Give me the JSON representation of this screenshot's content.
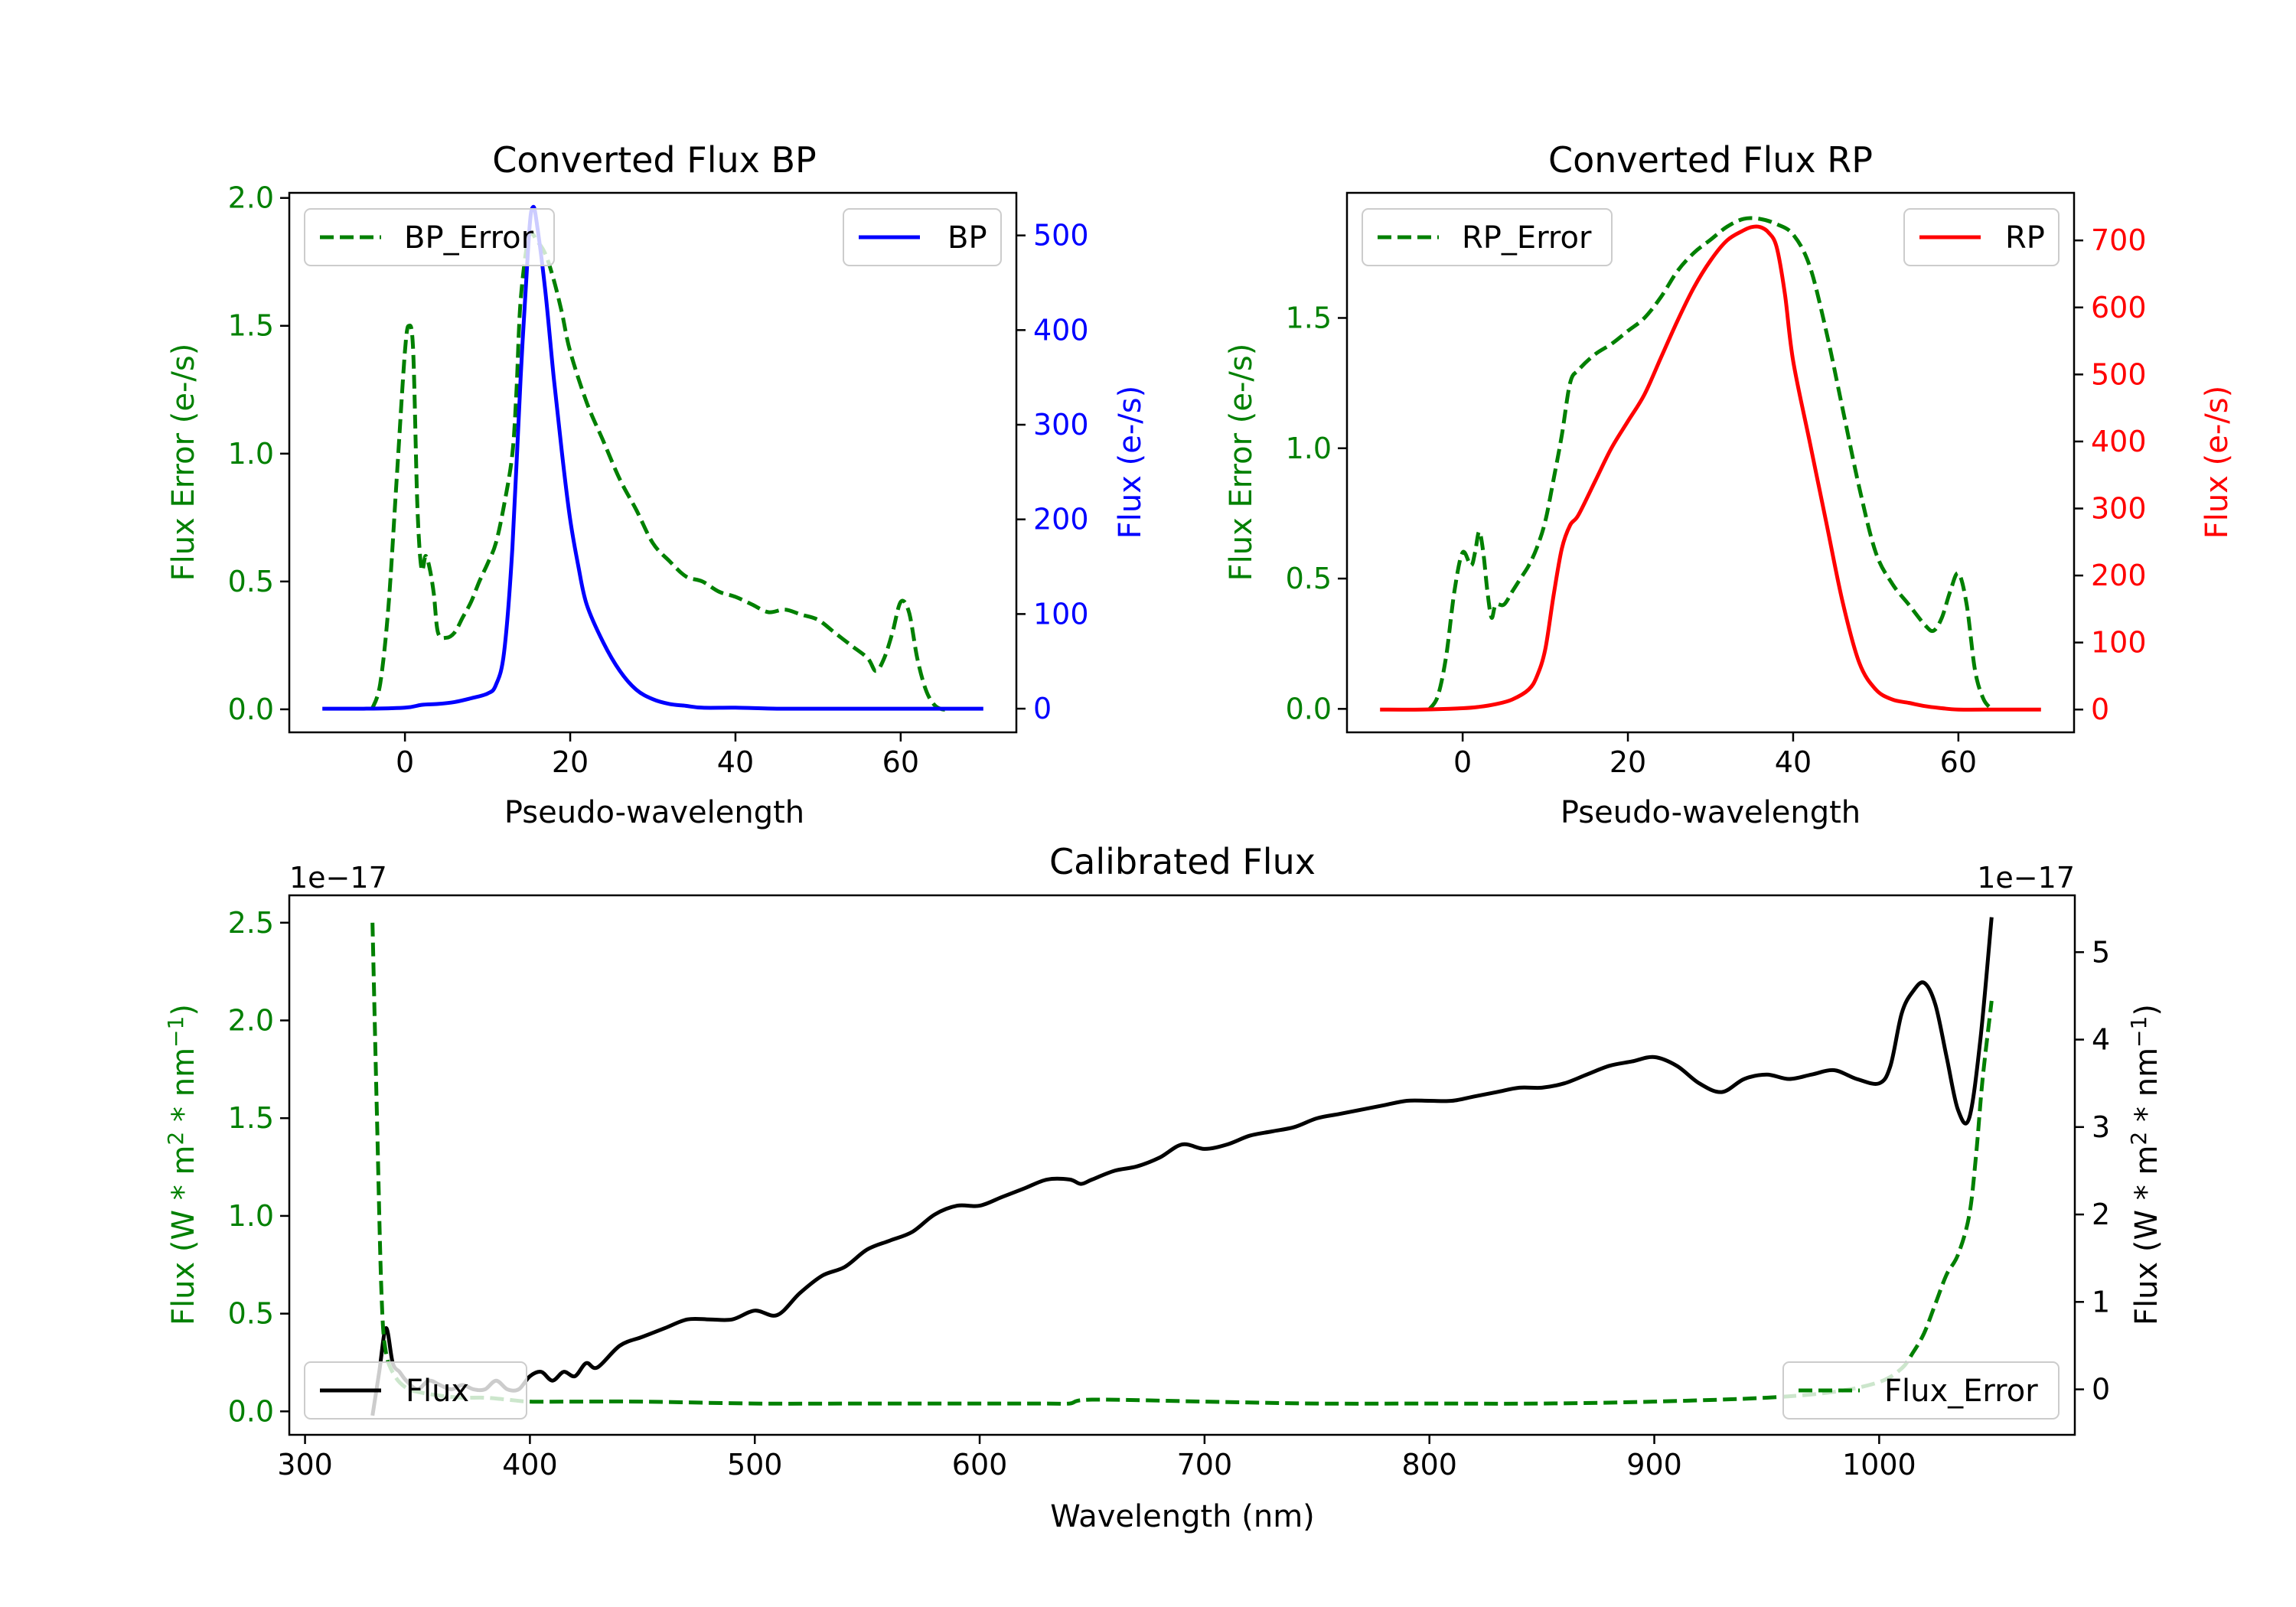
{
  "colors": {
    "green": "#008000",
    "blue": "#0000ff",
    "red": "#ff0000",
    "black": "#000000"
  },
  "chart_data": [
    {
      "type": "line",
      "title": "Converted Flux BP",
      "xlabel": "Pseudo-wavelength",
      "ylabel_left": "Flux Error (e-/s)",
      "ylabel_right": "Flux (e-/s)",
      "xlim": [
        -14,
        74
      ],
      "ylim_left": [
        -0.09,
        2.02
      ],
      "ylim_right": [
        -25,
        545
      ],
      "xticks": [
        "0",
        "20",
        "40",
        "60"
      ],
      "yticks_left": [
        "0.0",
        "0.5",
        "1.0",
        "1.5",
        "2.0"
      ],
      "yticks_right": [
        "0",
        "100",
        "200",
        "300",
        "400",
        "500"
      ],
      "legend_left": "BP_Error",
      "legend_right": "BP",
      "series": [
        {
          "name": "BP_Error",
          "axis": "left",
          "style": "dashed",
          "color": "#008000",
          "x": [
            -4,
            -3,
            -2,
            -1,
            0,
            0.5,
            1,
            1.5,
            2,
            2.5,
            3,
            3.5,
            4,
            5,
            6,
            7,
            8,
            9,
            10,
            11,
            12,
            13,
            13.5,
            14,
            15,
            16,
            17,
            18,
            19,
            20,
            22,
            24,
            26,
            28,
            30,
            32,
            34,
            36,
            38,
            40,
            42,
            44,
            46,
            48,
            50,
            52,
            54,
            56,
            57,
            58,
            59,
            60,
            61,
            62,
            63,
            64,
            65,
            66
          ],
          "values": [
            0.0,
            0.1,
            0.4,
            0.9,
            1.4,
            1.5,
            1.4,
            0.8,
            0.55,
            0.6,
            0.55,
            0.45,
            0.3,
            0.28,
            0.3,
            0.36,
            0.42,
            0.5,
            0.57,
            0.65,
            0.8,
            1.0,
            1.25,
            1.6,
            1.85,
            1.83,
            1.78,
            1.68,
            1.55,
            1.4,
            1.2,
            1.05,
            0.9,
            0.78,
            0.65,
            0.58,
            0.52,
            0.5,
            0.46,
            0.44,
            0.41,
            0.38,
            0.39,
            0.37,
            0.35,
            0.3,
            0.25,
            0.2,
            0.15,
            0.2,
            0.3,
            0.42,
            0.38,
            0.2,
            0.08,
            0.02,
            0.0,
            0.0
          ]
        },
        {
          "name": "BP",
          "axis": "right",
          "style": "solid",
          "color": "#0000ff",
          "x": [
            -10,
            -5,
            0,
            2,
            4,
            6,
            8,
            10,
            11,
            12,
            13,
            14,
            15,
            15.5,
            16,
            17,
            18,
            19,
            20,
            21,
            22,
            24,
            26,
            28,
            30,
            32,
            34,
            36,
            40,
            45,
            50,
            55,
            60,
            65,
            70
          ],
          "values": [
            0,
            0,
            1,
            4,
            5,
            7,
            11,
            16,
            25,
            60,
            170,
            350,
            500,
            530,
            510,
            440,
            350,
            270,
            200,
            150,
            110,
            70,
            40,
            20,
            10,
            5,
            3,
            1,
            1,
            0,
            0,
            0,
            0,
            0,
            0
          ]
        }
      ]
    },
    {
      "type": "line",
      "title": "Converted Flux RP",
      "xlabel": "Pseudo-wavelength",
      "ylabel_left": "Flux Error (e-/s)",
      "ylabel_right": "Flux (e-/s)",
      "xlim": [
        -14,
        74
      ],
      "ylim_left": [
        -0.09,
        1.98
      ],
      "ylim_right": [
        -34,
        771
      ],
      "xticks": [
        "0",
        "20",
        "40",
        "60"
      ],
      "yticks_left": [
        "0.0",
        "0.5",
        "1.0",
        "1.5"
      ],
      "yticks_right": [
        "0",
        "100",
        "200",
        "300",
        "400",
        "500",
        "600",
        "700"
      ],
      "legend_left": "RP_Error",
      "legend_right": "RP",
      "series": [
        {
          "name": "RP_Error",
          "axis": "left",
          "style": "dashed",
          "color": "#008000",
          "x": [
            -4,
            -3,
            -2,
            -1,
            0,
            1,
            1.5,
            2,
            2.5,
            3,
            3.5,
            4,
            5,
            6,
            7,
            8,
            9,
            10,
            11,
            12,
            13,
            14,
            16,
            18,
            20,
            22,
            24,
            26,
            28,
            30,
            32,
            34,
            36,
            38,
            40,
            42,
            44,
            46,
            48,
            50,
            52,
            54,
            56,
            57,
            58,
            59,
            60,
            61,
            62,
            63,
            64
          ],
          "values": [
            0.0,
            0.05,
            0.2,
            0.45,
            0.6,
            0.55,
            0.6,
            0.68,
            0.6,
            0.45,
            0.35,
            0.4,
            0.4,
            0.45,
            0.5,
            0.55,
            0.62,
            0.72,
            0.88,
            1.05,
            1.25,
            1.3,
            1.36,
            1.4,
            1.45,
            1.5,
            1.58,
            1.68,
            1.75,
            1.8,
            1.85,
            1.88,
            1.88,
            1.86,
            1.82,
            1.7,
            1.45,
            1.15,
            0.85,
            0.6,
            0.48,
            0.4,
            0.32,
            0.3,
            0.35,
            0.45,
            0.52,
            0.4,
            0.15,
            0.04,
            0.0
          ]
        },
        {
          "name": "RP",
          "axis": "right",
          "style": "solid",
          "color": "#ff0000",
          "x": [
            -10,
            -5,
            0,
            2,
            4,
            6,
            8,
            9,
            10,
            11,
            12,
            13,
            14,
            16,
            18,
            20,
            22,
            24,
            26,
            28,
            30,
            32,
            34,
            35,
            36,
            37,
            38,
            39,
            40,
            42,
            44,
            46,
            48,
            50,
            52,
            54,
            56,
            58,
            60,
            65,
            70
          ],
          "values": [
            0,
            0,
            2,
            4,
            8,
            15,
            30,
            50,
            90,
            170,
            240,
            275,
            290,
            340,
            390,
            430,
            470,
            525,
            580,
            630,
            670,
            700,
            715,
            720,
            720,
            712,
            690,
            620,
            520,
            400,
            280,
            160,
            70,
            30,
            15,
            10,
            5,
            2,
            0,
            0,
            0
          ]
        }
      ]
    },
    {
      "type": "line",
      "title": "Calibrated Flux",
      "xlabel": "Wavelength (nm)",
      "ylabel_left_base": "Flux (W * m",
      "ylabel_sup1": "2",
      "ylabel_mid": " * nm",
      "ylabel_sup2": "−1",
      "ylabel_end": ")",
      "offset_left": "1e−17",
      "offset_right": "1e−17",
      "xlim": [
        293,
        1087
      ],
      "ylim_left": [
        -0.12,
        2.64
      ],
      "ylim_right": [
        -0.52,
        5.65
      ],
      "xticks": [
        "300",
        "400",
        "500",
        "600",
        "700",
        "800",
        "900",
        "1000"
      ],
      "yticks_left": [
        "0.0",
        "0.5",
        "1.0",
        "1.5",
        "2.0",
        "2.5"
      ],
      "yticks_right": [
        "0",
        "1",
        "2",
        "3",
        "4",
        "5"
      ],
      "legend_left": "Flux",
      "legend_right": "Flux_Error",
      "series": [
        {
          "name": "Flux",
          "axis": "right",
          "style": "solid",
          "color": "#000000",
          "x": [
            330,
            333,
            336,
            339,
            342,
            345,
            350,
            355,
            360,
            365,
            370,
            375,
            380,
            385,
            390,
            395,
            400,
            405,
            410,
            415,
            420,
            425,
            430,
            440,
            450,
            460,
            470,
            480,
            490,
            500,
            510,
            520,
            530,
            540,
            550,
            560,
            570,
            580,
            590,
            600,
            610,
            620,
            630,
            640,
            645,
            650,
            660,
            670,
            680,
            690,
            700,
            710,
            720,
            730,
            740,
            750,
            760,
            770,
            780,
            790,
            800,
            810,
            820,
            830,
            840,
            850,
            860,
            870,
            880,
            890,
            900,
            910,
            920,
            930,
            940,
            950,
            960,
            970,
            980,
            990,
            1000,
            1005,
            1010,
            1015,
            1020,
            1025,
            1030,
            1035,
            1040,
            1045,
            1050
          ],
          "values": [
            -0.3,
            0.2,
            0.7,
            0.3,
            0.2,
            0.1,
            0.0,
            0.1,
            0.05,
            0.0,
            0.05,
            0.0,
            0.0,
            0.1,
            0.0,
            0.0,
            0.15,
            0.2,
            0.1,
            0.2,
            0.15,
            0.3,
            0.25,
            0.5,
            0.6,
            0.7,
            0.8,
            0.8,
            0.8,
            0.9,
            0.85,
            1.1,
            1.3,
            1.4,
            1.6,
            1.7,
            1.8,
            2.0,
            2.1,
            2.1,
            2.2,
            2.3,
            2.4,
            2.4,
            2.35,
            2.4,
            2.5,
            2.55,
            2.65,
            2.8,
            2.75,
            2.8,
            2.9,
            2.95,
            3.0,
            3.1,
            3.15,
            3.2,
            3.25,
            3.3,
            3.3,
            3.3,
            3.35,
            3.4,
            3.45,
            3.45,
            3.5,
            3.6,
            3.7,
            3.75,
            3.8,
            3.7,
            3.5,
            3.4,
            3.55,
            3.6,
            3.55,
            3.6,
            3.65,
            3.55,
            3.5,
            3.7,
            4.3,
            4.55,
            4.65,
            4.4,
            3.8,
            3.2,
            3.1,
            4.0,
            5.4
          ]
        },
        {
          "name": "Flux_Error",
          "axis": "left",
          "style": "dashed",
          "color": "#008000",
          "x": [
            330,
            332,
            334,
            336,
            340,
            345,
            350,
            360,
            370,
            380,
            390,
            400,
            420,
            450,
            500,
            550,
            600,
            630,
            640,
            650,
            700,
            750,
            800,
            850,
            900,
            950,
            980,
            1000,
            1010,
            1015,
            1020,
            1025,
            1030,
            1035,
            1040,
            1043,
            1046,
            1050
          ],
          "values": [
            2.5,
            1.5,
            0.6,
            0.3,
            0.18,
            0.12,
            0.1,
            0.08,
            0.07,
            0.07,
            0.06,
            0.05,
            0.05,
            0.05,
            0.04,
            0.04,
            0.04,
            0.04,
            0.04,
            0.06,
            0.05,
            0.04,
            0.04,
            0.04,
            0.05,
            0.07,
            0.1,
            0.15,
            0.22,
            0.3,
            0.4,
            0.55,
            0.7,
            0.8,
            1.0,
            1.3,
            1.7,
            2.1
          ]
        }
      ]
    }
  ]
}
